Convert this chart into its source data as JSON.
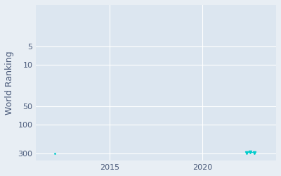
{
  "ylabel": "World Ranking",
  "xlabel": "",
  "background_color": "#e8eef4",
  "plot_bg_color": "#dce6f0",
  "single_point_early": {
    "year": 2012.0,
    "rank": 300
  },
  "cluster_points": [
    {
      "year": 2022.4,
      "rank": 292
    },
    {
      "year": 2022.6,
      "rank": 288
    },
    {
      "year": 2022.8,
      "rank": 295
    }
  ],
  "yticks": [
    5,
    10,
    50,
    100,
    300
  ],
  "xticks": [
    2015,
    2020
  ],
  "xlim": [
    2011,
    2024
  ],
  "ylim_top": 400,
  "ylim_bottom": 1,
  "line_color": "#00cccc",
  "marker_color": "#00cccc",
  "grid_color": "#ffffff",
  "tick_color": "#4a5a7a",
  "axis_label_color": "#4a5a7a",
  "grid_linewidth": 0.8,
  "ylabel_fontsize": 9,
  "tick_labelsize": 8
}
